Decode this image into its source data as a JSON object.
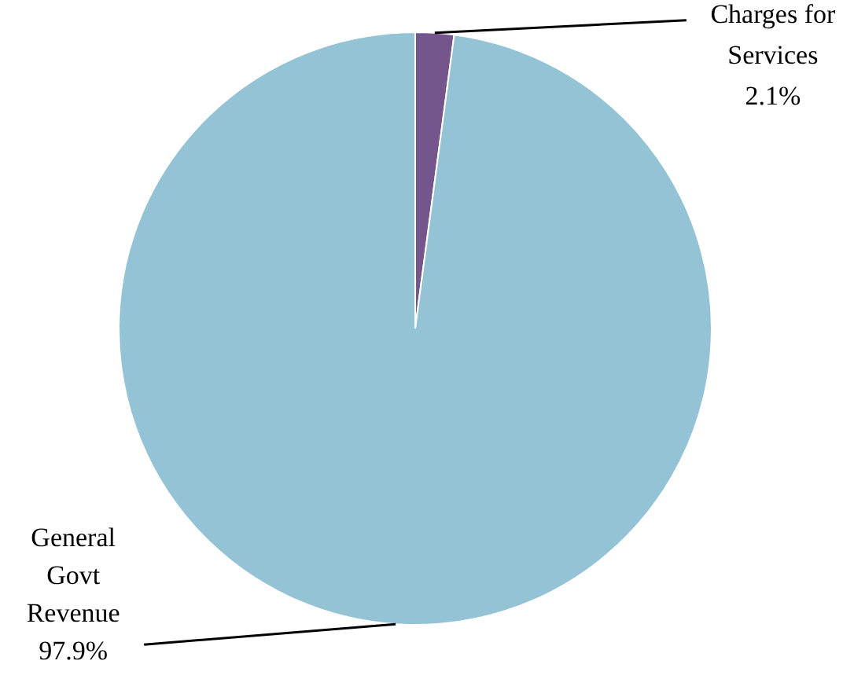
{
  "chart_data": {
    "type": "pie",
    "categories": [
      "Charges for Services",
      "General Govt Revenue"
    ],
    "values": [
      2.1,
      97.9
    ],
    "value_labels": [
      "2.1%",
      "97.9%"
    ],
    "colors": [
      "#74558c",
      "#93c3d4"
    ],
    "legend": false
  }
}
